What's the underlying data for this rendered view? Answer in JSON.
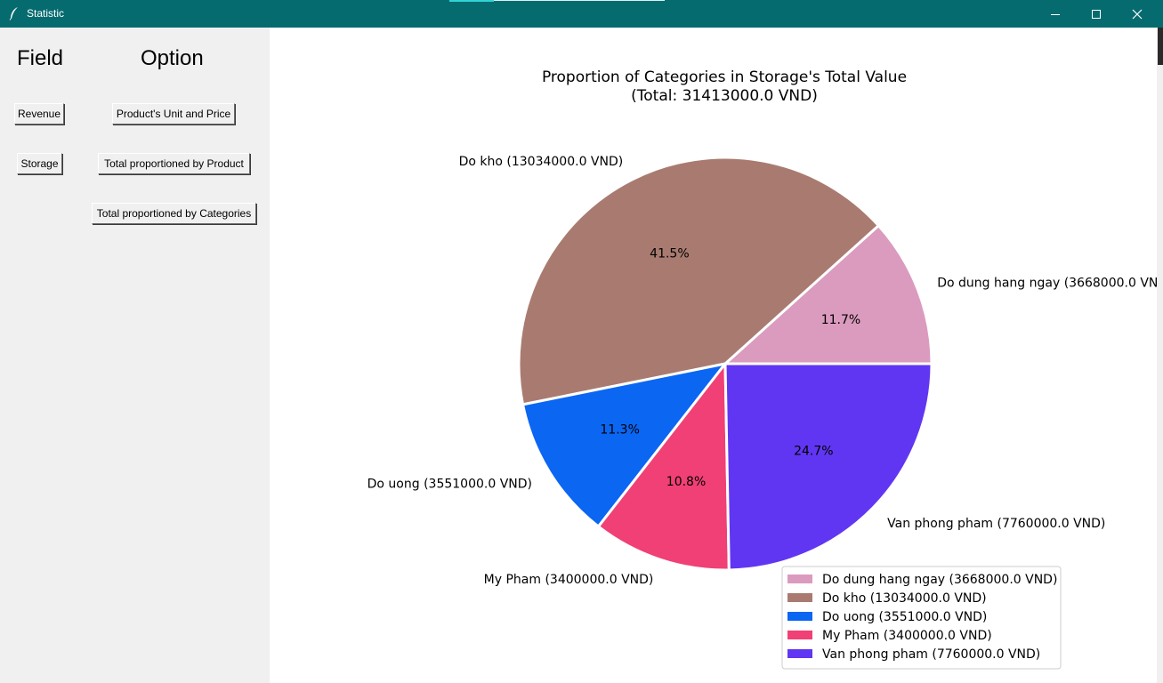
{
  "window": {
    "title": "Statistic",
    "icon": "feather-icon"
  },
  "left_panel": {
    "field_header": "Field",
    "option_header": "Option",
    "field_buttons": {
      "revenue": "Revenue",
      "storage": "Storage"
    },
    "option_buttons": {
      "unit_price": "Product's Unit and Price",
      "by_product": "Total proportioned by Product",
      "by_categories": "Total proportioned by Categories"
    }
  },
  "chart_data": {
    "type": "pie",
    "title": "Proportion of Categories in Storage's Total Value",
    "subtitle": "(Total: 31413000.0 VND)",
    "start_angle_deg": 0,
    "direction": "counterclockwise",
    "slices": [
      {
        "label": "Do dung hang ngay (3668000.0 VND)",
        "value": 3668000.0,
        "pct_label": "11.7%",
        "color": "#da9bbe"
      },
      {
        "label": "Do kho (13034000.0 VND)",
        "value": 13034000.0,
        "pct_label": "41.5%",
        "color": "#a97b70"
      },
      {
        "label": "Do uong (3551000.0 VND)",
        "value": 3551000.0,
        "pct_label": "11.3%",
        "color": "#0b66f2"
      },
      {
        "label": "My Pham (3400000.0 VND)",
        "value": 3400000.0,
        "pct_label": "10.8%",
        "color": "#f04075"
      },
      {
        "label": "Van phong pham (7760000.0 VND)",
        "value": 7760000.0,
        "pct_label": "24.7%",
        "color": "#6136f2"
      }
    ],
    "legend_position": "lower-right"
  }
}
